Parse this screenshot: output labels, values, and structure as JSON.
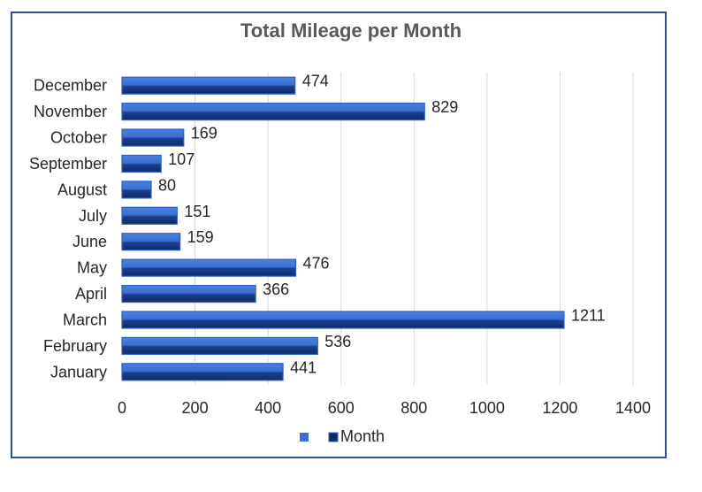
{
  "chart_data": {
    "type": "bar",
    "orientation": "horizontal",
    "title": "Total Mileage per Month",
    "xlabel": "",
    "ylabel": "",
    "categories": [
      "January",
      "February",
      "March",
      "April",
      "May",
      "June",
      "July",
      "August",
      "September",
      "October",
      "November",
      "December"
    ],
    "series": [
      {
        "name": "Month",
        "values": [
          441,
          536,
          1211,
          366,
          476,
          159,
          151,
          80,
          107,
          169,
          829,
          474
        ]
      }
    ],
    "xlim": [
      0,
      1400
    ],
    "x_ticks": [
      0,
      200,
      400,
      600,
      800,
      1000,
      1200,
      1400
    ],
    "grid": true,
    "legend_position": "bottom",
    "colors": {
      "bar_light": "#3a6fd0",
      "bar_dark": "#102a66",
      "border": "#2e4f8f",
      "grid": "#d9d9d9"
    }
  }
}
